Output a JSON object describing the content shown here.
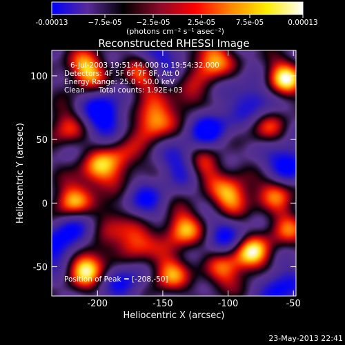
{
  "chart_data": {
    "type": "heatmap",
    "title": "Reconstructed RHESSI Image",
    "xlabel": "Heliocentric X (arcsec)",
    "ylabel": "Heliocentric Y (arcsec)",
    "xlim": [
      -235,
      -48
    ],
    "ylim": [
      -73,
      120
    ],
    "x_ticks": [
      -200,
      -150,
      -100,
      -50
    ],
    "x_tick_labels": [
      "-200",
      "-150",
      "-100",
      "-50"
    ],
    "y_ticks": [
      -50,
      0,
      50,
      100
    ],
    "y_tick_labels": [
      "-50",
      "0",
      "50",
      "100"
    ],
    "colorbar": {
      "min": -0.00013,
      "max": 0.00013,
      "tick_values": [
        -0.00013,
        -7.5e-05,
        -2.5e-05,
        2.5e-05,
        7.5e-05,
        0.00013
      ],
      "tick_labels": [
        "-0.00013",
        "−7.5e-05",
        "−2.5e-05",
        "2.5e-05",
        "7.5e-05",
        "0.00013"
      ],
      "unit_label": "(photons cm⁻² s⁻¹ asec⁻²)",
      "colors": [
        "#0000ff",
        "#5a2a9a",
        "#000000",
        "#8a0a2a",
        "#ff0000",
        "#ff8800",
        "#ffee00",
        "#ffffff"
      ]
    },
    "annotations": [
      "6-Jul-2003 19:51:44.000 to 19:54:32.000",
      "Detectors: 4F 5F 6F 7F 8F, Att 0",
      "Energy Range: 25.0 - 50.0 keV",
      "Clean      Total counts: 1.92E+03",
      "Position of Peak = [-208,-50]"
    ],
    "peak": [
      -208,
      -50
    ],
    "bright_sources": [
      {
        "x": -208,
        "y": -50,
        "v": 1.0
      },
      {
        "x": -83,
        "y": -40,
        "v": 0.95
      },
      {
        "x": -57,
        "y": 98,
        "v": 0.9
      },
      {
        "x": -113,
        "y": 112,
        "v": 0.85
      },
      {
        "x": -208,
        "y": 105,
        "v": 0.85
      },
      {
        "x": -158,
        "y": 65,
        "v": 0.85
      },
      {
        "x": -220,
        "y": 0,
        "v": 0.85
      },
      {
        "x": -97,
        "y": 5,
        "v": 0.85
      },
      {
        "x": -135,
        "y": -20,
        "v": 0.8
      },
      {
        "x": -172,
        "y": -30,
        "v": 0.75
      },
      {
        "x": -200,
        "y": 25,
        "v": 0.7
      },
      {
        "x": -165,
        "y": 100,
        "v": 0.6
      },
      {
        "x": -118,
        "y": 30,
        "v": 0.65
      },
      {
        "x": -62,
        "y": 10,
        "v": 0.65
      },
      {
        "x": -145,
        "y": -55,
        "v": 0.7
      },
      {
        "x": -180,
        "y": 35,
        "v": 0.55
      },
      {
        "x": -105,
        "y": -55,
        "v": 0.55
      },
      {
        "x": -70,
        "y": 60,
        "v": 0.5
      },
      {
        "x": -225,
        "y": 60,
        "v": 0.55
      },
      {
        "x": -55,
        "y": -20,
        "v": 0.55
      },
      {
        "x": -190,
        "y": -10,
        "v": 0.45
      },
      {
        "x": -130,
        "y": 80,
        "v": 0.5
      }
    ],
    "negative_regions": [
      {
        "x": -195,
        "y": 70,
        "v": -0.8
      },
      {
        "x": -115,
        "y": 60,
        "v": -0.7
      },
      {
        "x": -230,
        "y": -35,
        "v": -0.7
      },
      {
        "x": -165,
        "y": 0,
        "v": -0.5
      },
      {
        "x": -55,
        "y": 30,
        "v": -0.8
      },
      {
        "x": -80,
        "y": 80,
        "v": -0.6
      },
      {
        "x": -100,
        "y": -25,
        "v": -0.55
      },
      {
        "x": -150,
        "y": 115,
        "v": -0.55
      },
      {
        "x": -60,
        "y": -65,
        "v": -0.6
      },
      {
        "x": -180,
        "y": -60,
        "v": -0.5
      },
      {
        "x": -135,
        "y": 30,
        "v": -0.55
      },
      {
        "x": -215,
        "y": -15,
        "v": -0.5
      }
    ]
  },
  "footer": {
    "timestamp": "23-May-2013 22:41"
  }
}
